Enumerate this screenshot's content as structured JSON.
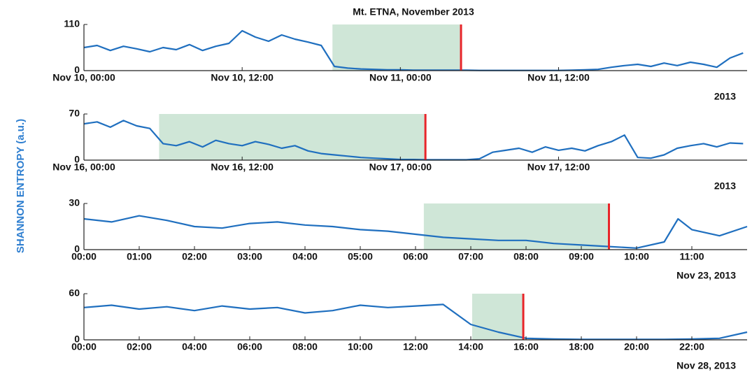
{
  "ylabel": "SHANNON ENTROPY (a.u.)",
  "chart_data": [
    {
      "type": "line",
      "title": "Mt. ETNA, November 2013",
      "corner_label": "2013",
      "xlim": [
        0,
        50.3
      ],
      "ylim": [
        0,
        110
      ],
      "yticks": [
        0,
        110
      ],
      "xticks": [
        {
          "value": 0,
          "label": "Nov 10, 00:00"
        },
        {
          "value": 12,
          "label": "Nov 10, 12:00"
        },
        {
          "value": 24,
          "label": "Nov 11, 00:00"
        },
        {
          "value": 36,
          "label": "Nov 11, 12:00"
        }
      ],
      "shade": [
        18.85,
        28.6
      ],
      "marker": 28.6,
      "color": "#1f6fbf",
      "shade_color": "#cfe6d7",
      "marker_color": "#e8252a",
      "x": [
        0,
        1,
        2,
        3,
        4,
        5,
        6,
        7,
        8,
        9,
        10,
        11,
        12,
        13,
        14,
        15,
        16,
        17,
        18,
        19,
        20,
        21,
        22,
        23,
        24,
        25,
        26,
        27,
        28,
        29,
        30,
        31,
        32,
        33,
        34,
        35,
        36,
        37,
        38,
        39,
        40,
        41,
        42,
        43,
        44,
        45,
        46,
        47,
        48,
        49,
        50
      ],
      "values": [
        55,
        60,
        48,
        58,
        52,
        45,
        55,
        50,
        62,
        48,
        58,
        65,
        95,
        80,
        70,
        85,
        75,
        68,
        60,
        10,
        6,
        4,
        3,
        2,
        2,
        1,
        1,
        1,
        1,
        1,
        0.5,
        0.5,
        0.5,
        0.5,
        0.5,
        0.5,
        0.5,
        1,
        2,
        3,
        8,
        12,
        15,
        10,
        18,
        12,
        20,
        15,
        8,
        30,
        42
      ]
    },
    {
      "type": "line",
      "corner_label": "2013",
      "xlim": [
        0,
        50.3
      ],
      "ylim": [
        0,
        70
      ],
      "yticks": [
        0,
        70
      ],
      "xticks": [
        {
          "value": 0,
          "label": "Nov 16, 00:00"
        },
        {
          "value": 12,
          "label": "Nov 16, 12:00"
        },
        {
          "value": 24,
          "label": "Nov 17, 00:00"
        },
        {
          "value": 36,
          "label": "Nov 17, 12:00"
        }
      ],
      "shade": [
        5.7,
        25.9
      ],
      "marker": 25.9,
      "color": "#1f6fbf",
      "shade_color": "#cfe6d7",
      "marker_color": "#e8252a",
      "x": [
        0,
        1,
        2,
        3,
        4,
        5,
        6,
        7,
        8,
        9,
        10,
        11,
        12,
        13,
        14,
        15,
        16,
        17,
        18,
        19,
        20,
        21,
        22,
        23,
        24,
        25,
        26,
        27,
        28,
        29,
        30,
        31,
        32,
        33,
        34,
        35,
        36,
        37,
        38,
        39,
        40,
        41,
        42,
        43,
        44,
        45,
        46,
        47,
        48,
        49,
        50
      ],
      "values": [
        55,
        58,
        50,
        60,
        52,
        48,
        25,
        22,
        28,
        20,
        30,
        25,
        22,
        28,
        24,
        18,
        22,
        14,
        10,
        8,
        6,
        4,
        3,
        2,
        1,
        1,
        0.5,
        0.5,
        0.5,
        0.5,
        2,
        12,
        15,
        18,
        12,
        20,
        15,
        18,
        14,
        22,
        28,
        38,
        4,
        3,
        8,
        18,
        22,
        25,
        20,
        26,
        25
      ]
    },
    {
      "type": "line",
      "corner_label": "Nov 23, 2013",
      "xlim": [
        0,
        12
      ],
      "ylim": [
        0,
        30
      ],
      "yticks": [
        0,
        30
      ],
      "xticks": [
        {
          "value": 0,
          "label": "00:00"
        },
        {
          "value": 1,
          "label": "01:00"
        },
        {
          "value": 2,
          "label": "02:00"
        },
        {
          "value": 3,
          "label": "03:00"
        },
        {
          "value": 4,
          "label": "04:00"
        },
        {
          "value": 5,
          "label": "05:00"
        },
        {
          "value": 6,
          "label": "06:00"
        },
        {
          "value": 7,
          "label": "07:00"
        },
        {
          "value": 8,
          "label": "08:00"
        },
        {
          "value": 9,
          "label": "09:00"
        },
        {
          "value": 10,
          "label": "10:00"
        },
        {
          "value": 11,
          "label": "11:00"
        }
      ],
      "shade": [
        6.15,
        9.5
      ],
      "marker": 9.5,
      "color": "#1f6fbf",
      "shade_color": "#cfe6d7",
      "marker_color": "#e8252a",
      "x": [
        0,
        0.5,
        1,
        1.5,
        2,
        2.5,
        3,
        3.5,
        4,
        4.5,
        5,
        5.5,
        6,
        6.5,
        7,
        7.5,
        8,
        8.5,
        9,
        9.5,
        10,
        10.5,
        10.75,
        11,
        11.5,
        12
      ],
      "values": [
        20,
        18,
        22,
        19,
        15,
        14,
        17,
        18,
        16,
        15,
        13,
        12,
        10,
        8,
        7,
        6,
        6,
        4,
        3,
        2,
        1,
        5,
        20,
        13,
        9,
        15
      ]
    },
    {
      "type": "line",
      "corner_label": "Nov 28, 2013",
      "xlim": [
        0,
        24
      ],
      "ylim": [
        0,
        60
      ],
      "yticks": [
        0,
        60
      ],
      "xticks": [
        {
          "value": 0,
          "label": "00:00"
        },
        {
          "value": 2,
          "label": "02:00"
        },
        {
          "value": 4,
          "label": "04:00"
        },
        {
          "value": 6,
          "label": "06:00"
        },
        {
          "value": 8,
          "label": "08:00"
        },
        {
          "value": 10,
          "label": "10:00"
        },
        {
          "value": 12,
          "label": "12:00"
        },
        {
          "value": 14,
          "label": "14:00"
        },
        {
          "value": 16,
          "label": "16:00"
        },
        {
          "value": 18,
          "label": "18:00"
        },
        {
          "value": 20,
          "label": "20:00"
        },
        {
          "value": 22,
          "label": "22:00"
        }
      ],
      "shade": [
        14.05,
        15.9
      ],
      "marker": 15.9,
      "color": "#1f6fbf",
      "shade_color": "#cfe6d7",
      "marker_color": "#e8252a",
      "x": [
        0,
        1,
        2,
        3,
        4,
        5,
        6,
        7,
        8,
        9,
        10,
        11,
        12,
        13,
        14,
        15,
        16,
        17,
        18,
        19,
        20,
        21,
        22,
        23,
        24
      ],
      "values": [
        42,
        45,
        40,
        43,
        38,
        44,
        40,
        42,
        35,
        38,
        45,
        42,
        44,
        46,
        20,
        10,
        2,
        1,
        0.5,
        0.5,
        0.5,
        0.5,
        1,
        2,
        10
      ]
    }
  ]
}
